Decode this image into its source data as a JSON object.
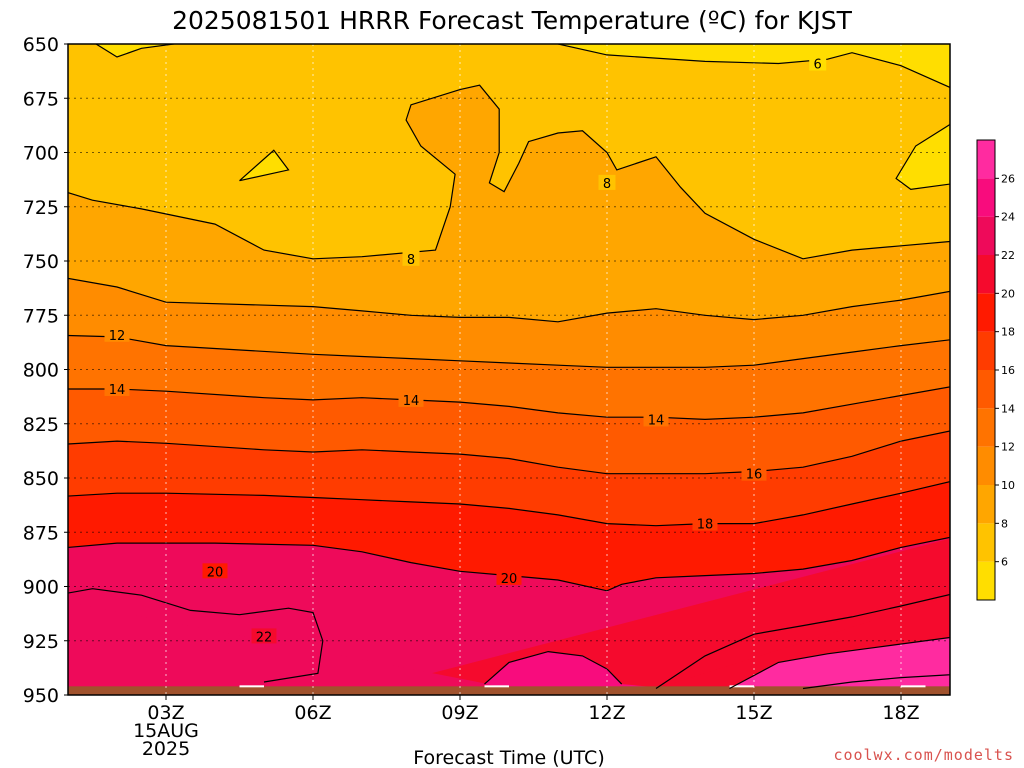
{
  "chart_data": {
    "type": "heatmap",
    "title": "2025081501 HRRR Forecast Temperature (ºC) for KJST",
    "xlabel": "Forecast Time (UTC)",
    "ylabel": "",
    "x_ticks": [
      "03Z",
      "06Z",
      "09Z",
      "12Z",
      "15Z",
      "18Z"
    ],
    "x_first_tick_sublabels": [
      "15AUG",
      "2025"
    ],
    "x_range_hours": [
      1,
      19
    ],
    "y_ticks": [
      650,
      675,
      700,
      725,
      750,
      775,
      800,
      825,
      850,
      875,
      900,
      925,
      950
    ],
    "y_range_hPa": [
      650,
      950
    ],
    "y_inverted": true,
    "colorbar_ticks": [
      6,
      8,
      10,
      12,
      14,
      16,
      18,
      20,
      22,
      24,
      26
    ],
    "colorbar_levels": [
      4,
      6,
      8,
      10,
      12,
      14,
      16,
      18,
      20,
      22,
      24,
      26,
      28
    ],
    "colorbar_colors": [
      "#ffde00",
      "#ffc300",
      "#ffa600",
      "#ff8c00",
      "#ff7300",
      "#ff5a00",
      "#ff3c00",
      "#ff1a00",
      "#f50a2d",
      "#ee0a5a",
      "#f80c7d",
      "#ff2ba0"
    ],
    "underground_color": "#a0522d",
    "vertical_grid_color": "#cccccc",
    "contour_labels": [
      {
        "text": "6",
        "hour": 16.3,
        "hPa": 659
      },
      {
        "text": "8",
        "hour": 8.0,
        "hPa": 749
      },
      {
        "text": "8",
        "hour": 12.0,
        "hPa": 714
      },
      {
        "text": "12",
        "hour": 2.0,
        "hPa": 784
      },
      {
        "text": "14",
        "hour": 2.0,
        "hPa": 809
      },
      {
        "text": "14",
        "hour": 8.0,
        "hPa": 814
      },
      {
        "text": "14",
        "hour": 13.0,
        "hPa": 823
      },
      {
        "text": "16",
        "hour": 15.0,
        "hPa": 848
      },
      {
        "text": "18",
        "hour": 14.0,
        "hPa": 871
      },
      {
        "text": "20",
        "hour": 4.0,
        "hPa": 893
      },
      {
        "text": "20",
        "hour": 10.0,
        "hPa": 896
      },
      {
        "text": "22",
        "hour": 5.0,
        "hPa": 923
      }
    ],
    "contours": [
      {
        "level": 6,
        "points": [
          [
            1.5,
            649
          ],
          [
            2.0,
            656
          ],
          [
            2.5,
            652
          ],
          [
            3.5,
            649
          ]
        ]
      },
      {
        "level": 6,
        "points": [
          [
            10.8,
            649
          ],
          [
            12.0,
            655
          ],
          [
            14.0,
            658
          ],
          [
            15.5,
            659
          ],
          [
            16.5,
            657
          ],
          [
            17.0,
            654
          ],
          [
            18.0,
            660
          ],
          [
            19.0,
            670
          ],
          [
            19.5,
            680
          ],
          [
            18.3,
            697
          ],
          [
            17.9,
            712
          ],
          [
            18.2,
            717
          ],
          [
            19.5,
            713
          ]
        ]
      },
      {
        "level": 6,
        "points": [
          [
            4.5,
            713
          ],
          [
            5.5,
            708
          ],
          [
            5.2,
            699
          ],
          [
            4.5,
            713
          ]
        ]
      },
      {
        "level": 8,
        "points": [
          [
            0.5,
            715
          ],
          [
            1.5,
            722
          ],
          [
            2.5,
            726
          ],
          [
            4.0,
            733
          ],
          [
            5.0,
            745
          ],
          [
            6.0,
            749
          ],
          [
            7.0,
            748
          ],
          [
            8.5,
            745
          ],
          [
            8.8,
            725
          ],
          [
            8.9,
            710
          ],
          [
            8.2,
            697
          ],
          [
            7.9,
            685
          ],
          [
            8.0,
            678
          ],
          [
            9.0,
            671
          ],
          [
            9.4,
            669
          ],
          [
            9.8,
            680
          ],
          [
            9.8,
            700
          ],
          [
            9.6,
            714
          ],
          [
            9.9,
            718
          ],
          [
            10.2,
            705
          ],
          [
            10.4,
            695
          ],
          [
            11.0,
            691
          ],
          [
            11.5,
            690
          ],
          [
            12.0,
            700
          ],
          [
            12.2,
            708
          ],
          [
            13.0,
            702
          ],
          [
            13.5,
            716
          ],
          [
            14.0,
            728
          ],
          [
            15.0,
            740
          ],
          [
            16.0,
            749
          ],
          [
            17.0,
            745
          ],
          [
            18.0,
            743
          ],
          [
            19.5,
            740
          ]
        ]
      },
      {
        "level": 10,
        "points": [
          [
            0.5,
            756
          ],
          [
            2.0,
            762
          ],
          [
            3.0,
            769
          ],
          [
            6.0,
            771
          ],
          [
            7.0,
            773
          ],
          [
            8.0,
            775
          ],
          [
            9.0,
            776
          ],
          [
            10.0,
            776
          ],
          [
            11.0,
            778
          ],
          [
            12.0,
            774
          ],
          [
            13.0,
            772
          ],
          [
            14.0,
            775
          ],
          [
            15.0,
            777
          ],
          [
            16.0,
            775
          ],
          [
            17.0,
            771
          ],
          [
            18.0,
            768
          ],
          [
            19.5,
            762
          ]
        ]
      },
      {
        "level": 12,
        "points": [
          [
            0.5,
            784
          ],
          [
            2.0,
            785
          ],
          [
            3.0,
            789
          ],
          [
            6.0,
            793
          ],
          [
            7.0,
            794
          ],
          [
            8.0,
            795
          ],
          [
            9.0,
            796
          ],
          [
            10.0,
            797
          ],
          [
            11.0,
            798
          ],
          [
            12.0,
            799
          ],
          [
            13.0,
            799
          ],
          [
            14.0,
            799
          ],
          [
            15.0,
            798
          ],
          [
            16.0,
            795
          ],
          [
            17.0,
            792
          ],
          [
            18.0,
            789
          ],
          [
            19.5,
            785
          ]
        ]
      },
      {
        "level": 14,
        "points": [
          [
            0.5,
            809
          ],
          [
            2.0,
            809
          ],
          [
            3.0,
            810
          ],
          [
            5.0,
            813
          ],
          [
            6.0,
            814
          ],
          [
            7.0,
            813
          ],
          [
            8.0,
            814
          ],
          [
            9.0,
            815
          ],
          [
            10.0,
            817
          ],
          [
            11.0,
            820
          ],
          [
            12.0,
            822
          ],
          [
            13.0,
            822
          ],
          [
            14.0,
            823
          ],
          [
            15.0,
            822
          ],
          [
            16.0,
            820
          ],
          [
            17.0,
            816
          ],
          [
            18.0,
            812
          ],
          [
            19.5,
            806
          ]
        ]
      },
      {
        "level": 16,
        "points": [
          [
            0.5,
            835
          ],
          [
            2.0,
            833
          ],
          [
            3.0,
            834
          ],
          [
            5.0,
            837
          ],
          [
            6.0,
            838
          ],
          [
            7.0,
            837
          ],
          [
            8.0,
            838
          ],
          [
            9.0,
            839
          ],
          [
            10.0,
            841
          ],
          [
            11.0,
            845
          ],
          [
            12.0,
            848
          ],
          [
            13.0,
            848
          ],
          [
            14.0,
            848
          ],
          [
            15.0,
            847
          ],
          [
            16.0,
            845
          ],
          [
            17.0,
            840
          ],
          [
            18.0,
            833
          ],
          [
            19.5,
            826
          ]
        ]
      },
      {
        "level": 18,
        "points": [
          [
            0.5,
            859
          ],
          [
            2.0,
            857
          ],
          [
            3.0,
            857
          ],
          [
            5.0,
            858
          ],
          [
            6.0,
            859
          ],
          [
            7.0,
            860
          ],
          [
            8.0,
            861
          ],
          [
            9.0,
            862
          ],
          [
            10.0,
            864
          ],
          [
            11.0,
            867
          ],
          [
            12.0,
            871
          ],
          [
            13.0,
            872
          ],
          [
            14.0,
            871
          ],
          [
            15.0,
            871
          ],
          [
            16.0,
            867
          ],
          [
            17.0,
            862
          ],
          [
            18.0,
            857
          ],
          [
            19.5,
            849
          ]
        ]
      },
      {
        "level": 20,
        "points": [
          [
            0.5,
            883
          ],
          [
            2.0,
            880
          ],
          [
            4.0,
            880
          ],
          [
            6.0,
            881
          ],
          [
            7.0,
            884
          ],
          [
            8.0,
            889
          ],
          [
            9.0,
            893
          ],
          [
            10.0,
            895
          ],
          [
            11.0,
            897
          ],
          [
            12.0,
            902
          ],
          [
            12.3,
            899
          ],
          [
            13.0,
            896
          ],
          [
            14.0,
            895
          ],
          [
            15.0,
            894
          ],
          [
            16.0,
            892
          ],
          [
            17.0,
            888
          ],
          [
            18.0,
            882
          ],
          [
            19.5,
            875
          ]
        ]
      },
      {
        "level": 22,
        "points": [
          [
            0.5,
            905
          ],
          [
            1.5,
            901
          ],
          [
            2.5,
            904
          ],
          [
            3.5,
            911
          ],
          [
            4.5,
            913
          ],
          [
            5.5,
            910
          ],
          [
            6.0,
            912
          ],
          [
            6.2,
            925
          ],
          [
            6.1,
            940
          ],
          [
            5.0,
            944
          ]
        ]
      },
      {
        "level": 22,
        "points": [
          [
            13.0,
            947
          ],
          [
            14.0,
            932
          ],
          [
            15.0,
            922
          ],
          [
            16.0,
            918
          ],
          [
            17.0,
            914
          ],
          [
            18.0,
            909
          ],
          [
            19.5,
            901
          ]
        ]
      },
      {
        "level": 22,
        "points": [
          [
            9.5,
            945
          ],
          [
            10.0,
            935
          ],
          [
            10.8,
            930
          ],
          [
            11.5,
            932
          ],
          [
            12.0,
            938
          ],
          [
            12.3,
            945
          ]
        ]
      },
      {
        "level": 24,
        "points": [
          [
            14.5,
            947
          ],
          [
            15.5,
            935
          ],
          [
            16.5,
            931
          ],
          [
            17.5,
            928
          ],
          [
            19.5,
            922
          ]
        ]
      },
      {
        "level": 26,
        "points": [
          [
            16.0,
            947
          ],
          [
            17.0,
            944
          ],
          [
            18.0,
            942
          ],
          [
            19.5,
            940
          ]
        ]
      }
    ],
    "grid": true,
    "colorbar_position": "right"
  },
  "watermark": "coolwx.com/modelts"
}
